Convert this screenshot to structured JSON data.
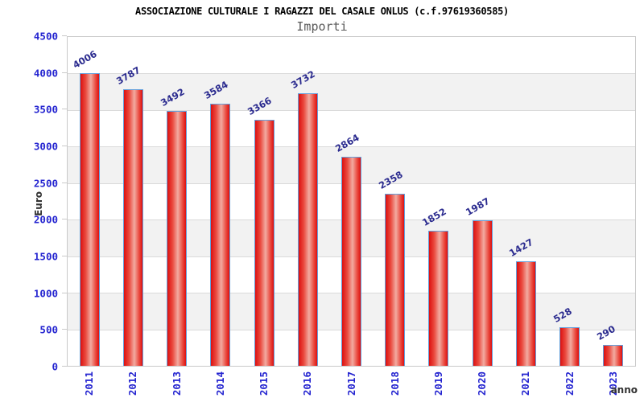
{
  "chart_data": {
    "type": "bar",
    "title": "ASSOCIAZIONE CULTURALE I RAGAZZI DEL CASALE ONLUS (c.f.97619360585)",
    "subtitle": "Importi",
    "xlabel": "anno",
    "ylabel": "Euro",
    "categories": [
      "2011",
      "2012",
      "2013",
      "2014",
      "2015",
      "2016",
      "2017",
      "2018",
      "2019",
      "2020",
      "2021",
      "2022",
      "2023"
    ],
    "values": [
      4006,
      3787,
      3492,
      3584,
      3366,
      3732,
      2864,
      2358,
      1852,
      1987,
      1427,
      528,
      290
    ],
    "ylim": [
      0,
      4500
    ],
    "ytick_step": 500,
    "yticks": [
      0,
      500,
      1000,
      1500,
      2000,
      2500,
      3000,
      3500,
      4000,
      4500
    ],
    "grid": "horizontal gridlines with alternating gray/white bands every 500",
    "legend": "none",
    "value_labels": "shown above each bar, rotated -30deg",
    "colors": {
      "title_color": "#000000",
      "subtitle_color": "#5a5a5a",
      "tick_label": "#2424d0",
      "value_label": "#2b2b8f",
      "bar_red": "#dc1010",
      "bar_highlight": "#f2aba1",
      "bar_border": "#64a0dc",
      "band_gray": "#f2f2f2",
      "grid_line": "#dadada",
      "axis_frame": "#c9c9c9",
      "axis_title_color": "#333333"
    }
  }
}
